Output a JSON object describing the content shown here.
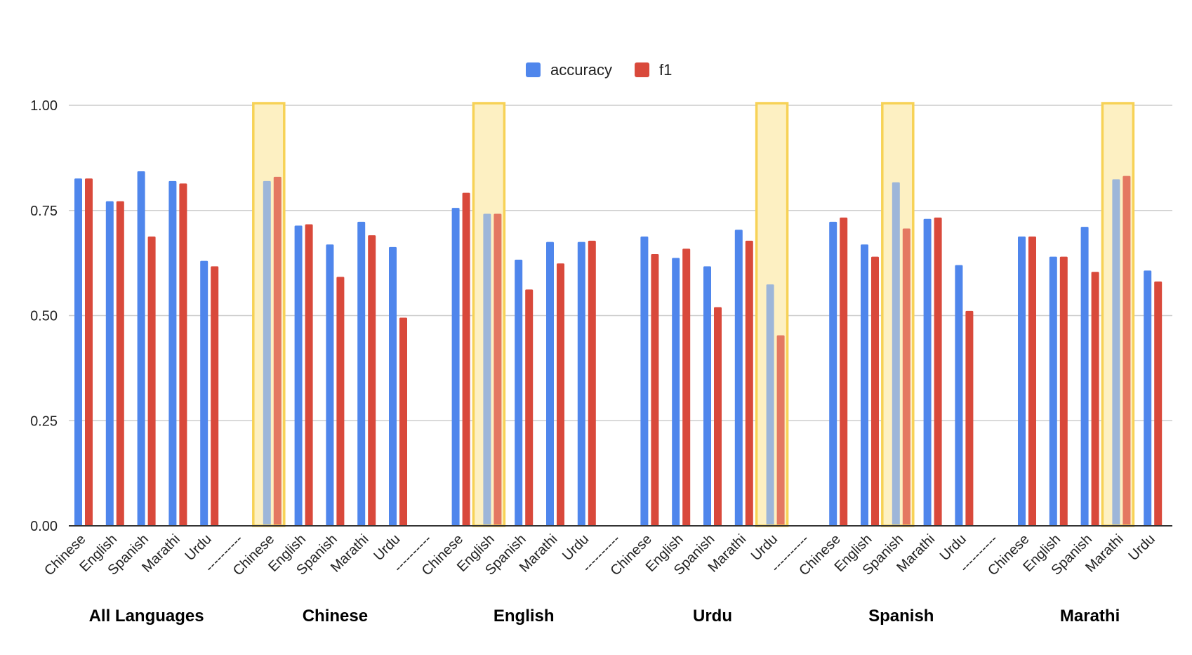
{
  "chart_data": {
    "type": "bar",
    "title": "",
    "xlabel": "",
    "ylabel": "",
    "ylim": [
      0,
      1
    ],
    "yticks": [
      "0.00",
      "0.25",
      "0.50",
      "0.75",
      "1.00"
    ],
    "grid": true,
    "legend_placement": "top-center",
    "colors": {
      "accuracy": "#4f86ec",
      "f1": "#d9493b",
      "highlight_fill": "#fdf0c2",
      "highlight_border": "#f7d256",
      "grid": "#cccccc",
      "axis": "#333333"
    },
    "separator_label": "----------",
    "groups": [
      {
        "label": "All Languages",
        "categories": [
          "Chinese",
          "English",
          "Spanish",
          "Marathi",
          "Urdu"
        ],
        "highlight": -1
      },
      {
        "label": "Chinese",
        "categories": [
          "Chinese",
          "English",
          "Spanish",
          "Marathi",
          "Urdu"
        ],
        "highlight": 0
      },
      {
        "label": "English",
        "categories": [
          "Chinese",
          "English",
          "Spanish",
          "Marathi",
          "Urdu"
        ],
        "highlight": 1
      },
      {
        "label": "Urdu",
        "categories": [
          "Chinese",
          "English",
          "Spanish",
          "Marathi",
          "Urdu"
        ],
        "highlight": 4
      },
      {
        "label": "Spanish",
        "categories": [
          "Chinese",
          "English",
          "Spanish",
          "Marathi",
          "Urdu"
        ],
        "highlight": 2
      },
      {
        "label": "Marathi",
        "categories": [
          "Chinese",
          "English",
          "Spanish",
          "Marathi",
          "Urdu"
        ],
        "highlight": 3
      }
    ],
    "series": [
      {
        "name": "accuracy",
        "values": [
          0.826,
          0.772,
          0.843,
          0.82,
          0.63,
          0.82,
          0.714,
          0.669,
          0.723,
          0.663,
          0.756,
          0.742,
          0.633,
          0.675,
          0.675,
          0.688,
          0.637,
          0.617,
          0.704,
          0.574,
          0.723,
          0.669,
          0.817,
          0.73,
          0.62,
          0.688,
          0.64,
          0.711,
          0.824,
          0.607
        ]
      },
      {
        "name": "f1",
        "values": [
          0.826,
          0.772,
          0.688,
          0.814,
          0.617,
          0.83,
          0.717,
          0.592,
          0.691,
          0.495,
          0.792,
          0.742,
          0.562,
          0.624,
          0.678,
          0.646,
          0.659,
          0.52,
          0.678,
          0.453,
          0.733,
          0.64,
          0.707,
          0.733,
          0.511,
          0.688,
          0.64,
          0.604,
          0.832,
          0.581
        ]
      }
    ]
  }
}
